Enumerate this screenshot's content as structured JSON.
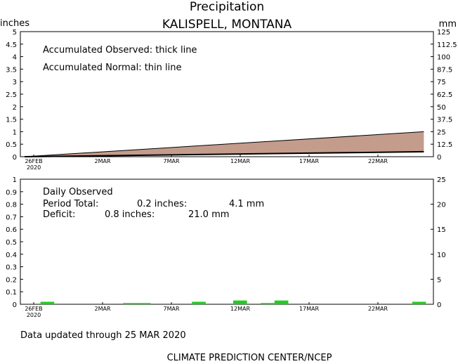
{
  "chart_data": [
    {
      "type": "area",
      "title": "Precipitation",
      "subtitle": "KALISPELL, MONTANA",
      "ylabel_left": "inches",
      "ylabel_right": "mm",
      "ylim": [
        0,
        5
      ],
      "yticks_left": [
        "0",
        "0.5",
        "1",
        "1.5",
        "2",
        "2.5",
        "3",
        "3.5",
        "4",
        "4.5",
        "5"
      ],
      "yticks_right": [
        "0",
        "12.5",
        "25",
        "37.5",
        "50",
        "62.5",
        "75",
        "87.5",
        "100",
        "112.5",
        "125"
      ],
      "xticks": [
        "26FEB",
        "2MAR",
        "7MAR",
        "12MAR",
        "17MAR",
        "22MAR"
      ],
      "xtick_year": "2020",
      "legend_text": [
        "Accumulated Observed: thick line",
        "Accumulated Normal: thin line"
      ],
      "series": [
        {
          "name": "Accumulated Observed",
          "x": [
            0,
            29
          ],
          "values": [
            0.0,
            0.2
          ]
        },
        {
          "name": "Accumulated Normal",
          "x": [
            0,
            29
          ],
          "values": [
            0.0,
            1.0
          ]
        }
      ],
      "deficit_fill_color": "#c49c8c"
    },
    {
      "type": "bar",
      "ylim": [
        0,
        1
      ],
      "yticks_left": [
        "0",
        "0.1",
        "0.2",
        "0.3",
        "0.4",
        "0.5",
        "0.6",
        "0.7",
        "0.8",
        "0.9",
        "1"
      ],
      "yticks_right": [
        "0",
        "5",
        "10",
        "15",
        "20",
        "25"
      ],
      "xticks": [
        "26FEB",
        "2MAR",
        "7MAR",
        "12MAR",
        "17MAR",
        "22MAR"
      ],
      "xtick_year": "2020",
      "annotation": {
        "title": "Daily Observed",
        "total_label": "Period Total:",
        "total_in": "0.2 inches:",
        "total_mm": "4.1 mm",
        "deficit_label": "Deficit:",
        "deficit_in": "0.8 inches:",
        "deficit_mm": "21.0 mm"
      },
      "bar_color": "#22cc22",
      "days": [
        1,
        7,
        8,
        12,
        15,
        17,
        18,
        28
      ],
      "values": [
        0.02,
        0.01,
        0.01,
        0.02,
        0.03,
        0.01,
        0.03,
        0.02
      ]
    }
  ],
  "footer": {
    "updated": "Data updated through 25 MAR 2020",
    "credit": "CLIMATE PREDICTION CENTER/NCEP"
  }
}
